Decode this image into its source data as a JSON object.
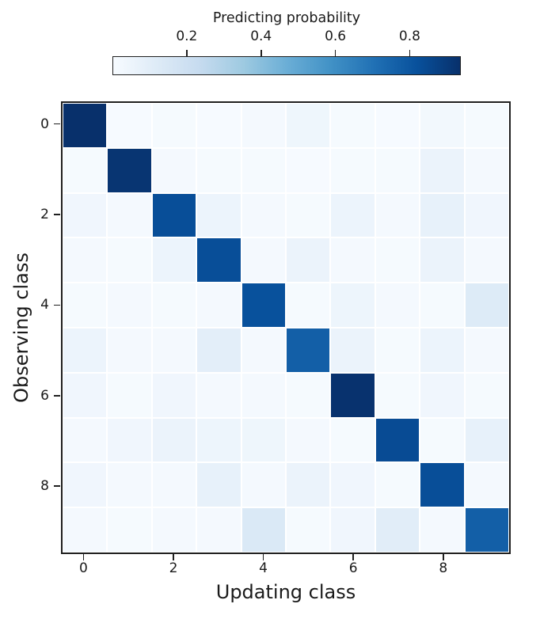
{
  "colorbar": {
    "title": "Predicting probability",
    "ticks": [
      {
        "label": "0.2",
        "value": 0.2
      },
      {
        "label": "0.4",
        "value": 0.4
      },
      {
        "label": "0.6",
        "value": 0.6
      },
      {
        "label": "0.8",
        "value": 0.8
      }
    ]
  },
  "chart_data": {
    "type": "heatmap",
    "xlabel": "Updating class",
    "ylabel": "Observing class",
    "x_tick_labels": [
      "0",
      "2",
      "4",
      "6",
      "8"
    ],
    "x_tick_positions": [
      0,
      2,
      4,
      6,
      8
    ],
    "y_tick_labels": [
      "0",
      "2",
      "4",
      "6",
      "8"
    ],
    "y_tick_positions": [
      0,
      2,
      4,
      6,
      8
    ],
    "rows": 10,
    "cols": 10,
    "vmin": 0,
    "vmax": 0.9375,
    "colormap": "Blues",
    "colormap_anchors": [
      "#f7fbff",
      "#deebf7",
      "#c6dbef",
      "#9ecae1",
      "#6baed6",
      "#4292c6",
      "#2171b5",
      "#08519c",
      "#08306b"
    ],
    "grid_line_color": "#ffffff",
    "spine_color": "#1f1f1f",
    "matrix": [
      [
        0.94,
        0.006,
        0.008,
        0.006,
        0.012,
        0.04,
        0.008,
        0.006,
        0.022,
        0.008
      ],
      [
        0.008,
        0.92,
        0.012,
        0.008,
        0.008,
        0.006,
        0.008,
        0.008,
        0.055,
        0.012
      ],
      [
        0.035,
        0.012,
        0.83,
        0.05,
        0.012,
        0.008,
        0.05,
        0.012,
        0.075,
        0.035
      ],
      [
        0.012,
        0.008,
        0.05,
        0.83,
        0.012,
        0.055,
        0.012,
        0.008,
        0.055,
        0.012
      ],
      [
        0.008,
        0.012,
        0.008,
        0.012,
        0.82,
        0.008,
        0.045,
        0.012,
        0.008,
        0.12
      ],
      [
        0.05,
        0.012,
        0.012,
        0.095,
        0.012,
        0.77,
        0.055,
        0.008,
        0.05,
        0.012
      ],
      [
        0.035,
        0.008,
        0.035,
        0.012,
        0.012,
        0.008,
        0.93,
        0.008,
        0.035,
        0.008
      ],
      [
        0.012,
        0.035,
        0.055,
        0.045,
        0.04,
        0.012,
        0.008,
        0.84,
        0.008,
        0.075
      ],
      [
        0.035,
        0.012,
        0.012,
        0.075,
        0.012,
        0.055,
        0.035,
        0.008,
        0.83,
        0.012
      ],
      [
        0.012,
        0.008,
        0.012,
        0.012,
        0.135,
        0.008,
        0.035,
        0.105,
        0.012,
        0.77
      ]
    ]
  }
}
